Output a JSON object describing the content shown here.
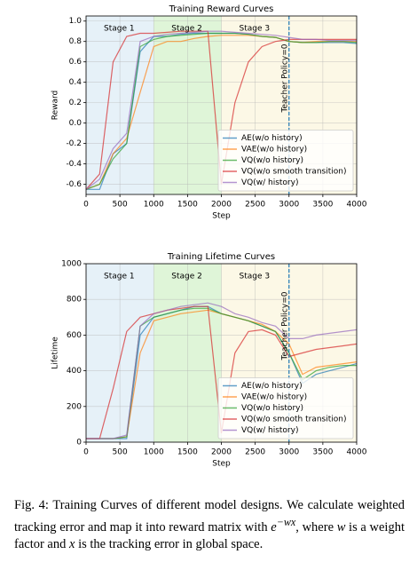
{
  "chart_data": [
    {
      "type": "line",
      "title": "Training Reward Curves",
      "xlabel": "Step",
      "ylabel": "Reward",
      "x": [
        0,
        200,
        400,
        600,
        800,
        1000,
        1200,
        1400,
        1600,
        1800,
        2000,
        2200,
        2400,
        2600,
        2800,
        3000,
        3200,
        3400,
        3600,
        3800,
        4000
      ],
      "xlim": [
        0,
        4000
      ],
      "xticks": [
        0,
        500,
        1000,
        1500,
        2000,
        2500,
        3000,
        3500,
        4000
      ],
      "ylim": [
        -0.7,
        1.05
      ],
      "yticks": [
        -0.6,
        -0.4,
        -0.2,
        {
          "value": 0,
          "label": "0.0"
        },
        0.2,
        0.4,
        0.6,
        0.8,
        {
          "value": 1,
          "label": "1.0"
        }
      ],
      "grid": true,
      "legend": "lower right",
      "stages": [
        {
          "label": "Stage 1",
          "start": 0,
          "end": 1000,
          "color": "#e6f1f8"
        },
        {
          "label": "Stage 2",
          "start": 1000,
          "end": 2000,
          "color": "#dff5d8"
        },
        {
          "label": "Stage 3",
          "start": 2000,
          "end": 4000,
          "color": "#fcf8e6"
        }
      ],
      "vline": {
        "x": 3000,
        "label": "Teacher Policy=0",
        "color": "#1f77b4"
      },
      "series": [
        {
          "name": "AE(w/o history)",
          "color": "#1f77b4",
          "values": [
            -0.65,
            -0.65,
            -0.3,
            -0.2,
            0.7,
            0.85,
            0.85,
            0.87,
            0.88,
            0.88,
            0.88,
            0.88,
            0.87,
            0.85,
            0.84,
            0.8,
            0.79,
            0.79,
            0.79,
            0.79,
            0.78
          ]
        },
        {
          "name": "VAE(w/o history)",
          "color": "#ff7f0e",
          "values": [
            -0.65,
            -0.6,
            -0.3,
            -0.15,
            0.3,
            0.75,
            0.8,
            0.8,
            0.83,
            0.85,
            0.86,
            0.86,
            0.86,
            0.85,
            0.84,
            0.8,
            0.79,
            0.8,
            0.8,
            0.8,
            0.8
          ]
        },
        {
          "name": "VQ(w/o history)",
          "color": "#2ca02c",
          "values": [
            -0.65,
            -0.6,
            -0.35,
            -0.2,
            0.75,
            0.82,
            0.85,
            0.86,
            0.87,
            0.88,
            0.88,
            0.88,
            0.87,
            0.85,
            0.84,
            0.8,
            0.79,
            0.79,
            0.8,
            0.8,
            0.79
          ]
        },
        {
          "name": "VQ(w/o smooth transition)",
          "color": "#d62728",
          "values": [
            -0.65,
            -0.5,
            0.6,
            0.85,
            0.88,
            0.88,
            0.89,
            0.9,
            0.9,
            0.9,
            -0.6,
            0.2,
            0.6,
            0.75,
            0.8,
            0.82,
            0.82,
            0.82,
            0.82,
            0.82,
            0.82
          ]
        },
        {
          "name": "VQ(w/ history)",
          "color": "#9467bd",
          "values": [
            -0.65,
            -0.55,
            -0.25,
            -0.1,
            0.8,
            0.85,
            0.87,
            0.88,
            0.89,
            0.9,
            0.9,
            0.89,
            0.88,
            0.87,
            0.86,
            0.84,
            0.82,
            0.82,
            0.81,
            0.81,
            0.81
          ]
        }
      ]
    },
    {
      "type": "line",
      "title": "Training Lifetime Curves",
      "xlabel": "Step",
      "ylabel": "Lifetime",
      "x": [
        0,
        200,
        400,
        600,
        800,
        1000,
        1200,
        1400,
        1600,
        1800,
        2000,
        2200,
        2400,
        2600,
        2800,
        3000,
        3200,
        3400,
        3600,
        3800,
        4000
      ],
      "xlim": [
        0,
        4000
      ],
      "xticks": [
        0,
        500,
        1000,
        1500,
        2000,
        2500,
        3000,
        3500,
        4000
      ],
      "ylim": [
        0,
        1000
      ],
      "yticks": [
        0,
        200,
        400,
        600,
        800,
        1000
      ],
      "grid": true,
      "legend": "lower right",
      "stages": [
        {
          "label": "Stage 1",
          "start": 0,
          "end": 1000,
          "color": "#e6f1f8"
        },
        {
          "label": "Stage 2",
          "start": 1000,
          "end": 2000,
          "color": "#dff5d8"
        },
        {
          "label": "Stage 3",
          "start": 2000,
          "end": 4000,
          "color": "#fcf8e6"
        }
      ],
      "vline": {
        "x": 3000,
        "label": "Teacher Policy=0",
        "color": "#1f77b4"
      },
      "series": [
        {
          "name": "AE(w/o history)",
          "color": "#1f77b4",
          "values": [
            20,
            20,
            20,
            20,
            600,
            700,
            720,
            740,
            760,
            760,
            720,
            700,
            680,
            650,
            620,
            500,
            330,
            380,
            400,
            420,
            440
          ]
        },
        {
          "name": "VAE(w/o history)",
          "color": "#ff7f0e",
          "values": [
            20,
            20,
            20,
            30,
            500,
            680,
            700,
            720,
            730,
            740,
            720,
            700,
            680,
            660,
            620,
            550,
            380,
            420,
            430,
            440,
            450
          ]
        },
        {
          "name": "VQ(w/o history)",
          "color": "#2ca02c",
          "values": [
            20,
            20,
            20,
            30,
            650,
            700,
            720,
            740,
            750,
            750,
            720,
            700,
            680,
            650,
            620,
            500,
            350,
            400,
            420,
            430,
            430
          ]
        },
        {
          "name": "VQ(w/o smooth transition)",
          "color": "#d62728",
          "values": [
            20,
            20,
            300,
            620,
            700,
            720,
            740,
            750,
            760,
            760,
            50,
            500,
            620,
            630,
            600,
            480,
            500,
            520,
            530,
            540,
            550
          ]
        },
        {
          "name": "VQ(w/ history)",
          "color": "#9467bd",
          "values": [
            20,
            20,
            20,
            40,
            650,
            720,
            740,
            760,
            770,
            780,
            760,
            720,
            700,
            670,
            650,
            580,
            580,
            600,
            610,
            620,
            630
          ]
        }
      ]
    }
  ],
  "caption": {
    "lead": "Fig. 4: Training Curves of different model designs. We calculate weighted tracking error and map it into reward matrix with ",
    "base": "e",
    "exponent": "−wx",
    "mid1": ", where ",
    "var1": "w",
    "mid2": " is a weight factor and ",
    "var2": "x",
    "tail": " is the tracking error in global space."
  }
}
